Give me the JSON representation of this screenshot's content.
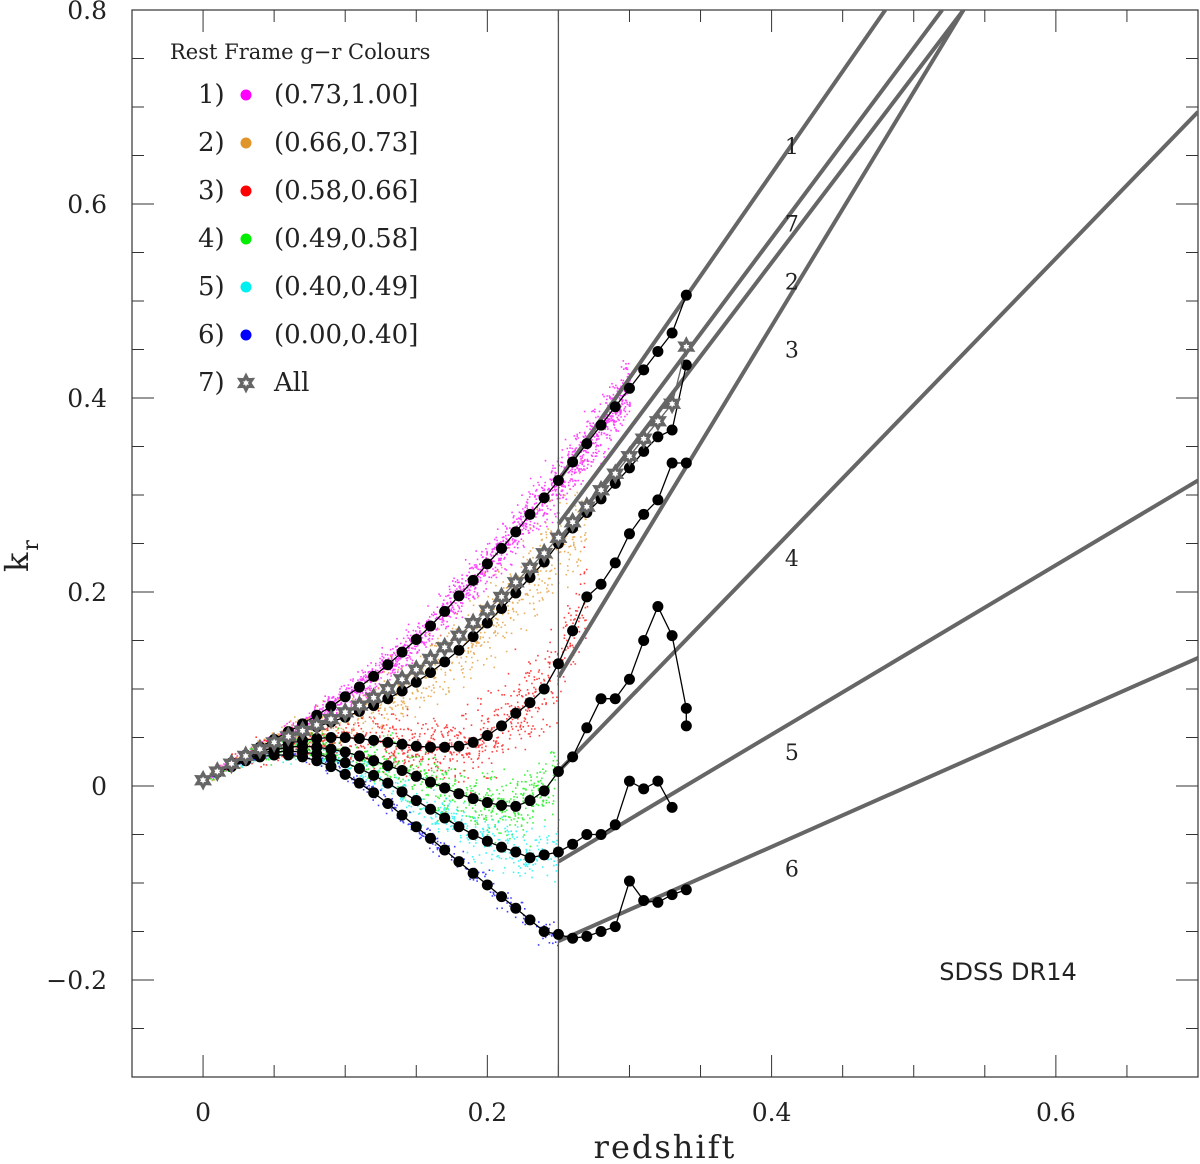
{
  "chart_data": {
    "type": "scatter",
    "title": "",
    "xlabel": "redshift",
    "ylabel": "k",
    "ylabel_subscript": "r",
    "xlim": [
      -0.05,
      0.7
    ],
    "ylim": [
      -0.3,
      0.8
    ],
    "x_ticks": [
      0,
      0.2,
      0.4,
      0.6
    ],
    "x_tick_labels": [
      "0",
      "0.2",
      "0.4",
      "0.6"
    ],
    "y_ticks": [
      -0.2,
      0,
      0.2,
      0.4,
      0.6,
      0.8
    ],
    "y_tick_labels": [
      "−0.2",
      "0",
      "0.2",
      "0.4",
      "0.6",
      "0.8"
    ],
    "vertical_line_x": 0.25,
    "annotation": "SDSS DR14",
    "legend": {
      "title": "Rest Frame g−r Colours",
      "position": "top-left",
      "entries": [
        {
          "label": "1)",
          "range": "(0.73,1.00]",
          "color": "#ff00ff"
        },
        {
          "label": "2)",
          "range": "(0.66,0.73]",
          "color": "#e0952a"
        },
        {
          "label": "3)",
          "range": "(0.58,0.66]",
          "color": "#ff0000"
        },
        {
          "label": "4)",
          "range": "(0.49,0.58]",
          "color": "#00ee00"
        },
        {
          "label": "5)",
          "range": "(0.40,0.49]",
          "color": "#00f0f0"
        },
        {
          "label": "6)",
          "range": "(0.00,0.40]",
          "color": "#0000ff"
        },
        {
          "label": "7)",
          "range": "All",
          "color": "#666666",
          "marker": "star"
        }
      ]
    },
    "series": [
      {
        "name": "1",
        "color": "#ff00ff",
        "x": [
          0.0,
          0.01,
          0.02,
          0.03,
          0.04,
          0.05,
          0.06,
          0.07,
          0.08,
          0.09,
          0.1,
          0.11,
          0.12,
          0.13,
          0.14,
          0.15,
          0.16,
          0.17,
          0.18,
          0.19,
          0.2,
          0.21,
          0.22,
          0.23,
          0.24,
          0.25,
          0.26,
          0.27,
          0.28,
          0.29,
          0.3,
          0.31,
          0.32,
          0.33,
          0.34
        ],
        "y": [
          0.006,
          0.015,
          0.024,
          0.032,
          0.04,
          0.048,
          0.056,
          0.064,
          0.073,
          0.082,
          0.092,
          0.102,
          0.113,
          0.125,
          0.138,
          0.151,
          0.165,
          0.18,
          0.196,
          0.212,
          0.229,
          0.245,
          0.262,
          0.28,
          0.297,
          0.315,
          0.334,
          0.353,
          0.372,
          0.391,
          0.41,
          0.429,
          0.448,
          0.467,
          0.506
        ]
      },
      {
        "name": "2",
        "color": "#e0952a",
        "x": [
          0.0,
          0.01,
          0.02,
          0.03,
          0.04,
          0.05,
          0.06,
          0.07,
          0.08,
          0.09,
          0.1,
          0.11,
          0.12,
          0.13,
          0.14,
          0.15,
          0.16,
          0.17,
          0.18,
          0.19,
          0.2,
          0.21,
          0.22,
          0.23,
          0.24,
          0.25,
          0.26,
          0.27,
          0.28,
          0.29,
          0.3,
          0.31,
          0.32,
          0.33,
          0.34
        ],
        "y": [
          0.006,
          0.015,
          0.023,
          0.031,
          0.038,
          0.045,
          0.051,
          0.056,
          0.061,
          0.066,
          0.071,
          0.077,
          0.083,
          0.09,
          0.098,
          0.107,
          0.117,
          0.128,
          0.14,
          0.154,
          0.168,
          0.183,
          0.199,
          0.215,
          0.231,
          0.25,
          0.266,
          0.282,
          0.296,
          0.312,
          0.328,
          0.345,
          0.36,
          0.367,
          0.434
        ]
      },
      {
        "name": "3",
        "color": "#ff0000",
        "x": [
          0.0,
          0.01,
          0.02,
          0.03,
          0.04,
          0.05,
          0.06,
          0.07,
          0.08,
          0.09,
          0.1,
          0.11,
          0.12,
          0.13,
          0.14,
          0.15,
          0.16,
          0.17,
          0.18,
          0.19,
          0.2,
          0.21,
          0.22,
          0.23,
          0.24,
          0.25,
          0.26,
          0.27,
          0.28,
          0.29,
          0.3,
          0.31,
          0.32,
          0.33,
          0.34
        ],
        "y": [
          0.006,
          0.014,
          0.022,
          0.029,
          0.035,
          0.04,
          0.044,
          0.047,
          0.049,
          0.05,
          0.05,
          0.049,
          0.047,
          0.045,
          0.043,
          0.041,
          0.04,
          0.04,
          0.041,
          0.045,
          0.052,
          0.062,
          0.075,
          0.086,
          0.1,
          0.126,
          0.16,
          0.195,
          0.208,
          0.23,
          0.26,
          0.28,
          0.295,
          0.333,
          0.333
        ]
      },
      {
        "name": "4",
        "color": "#00ee00",
        "x": [
          0.0,
          0.01,
          0.02,
          0.03,
          0.04,
          0.05,
          0.06,
          0.07,
          0.08,
          0.09,
          0.1,
          0.11,
          0.12,
          0.13,
          0.14,
          0.15,
          0.16,
          0.17,
          0.18,
          0.19,
          0.2,
          0.21,
          0.22,
          0.23,
          0.24,
          0.25,
          0.26,
          0.27,
          0.28,
          0.29,
          0.3,
          0.31,
          0.32,
          0.33,
          0.34,
          0.34
        ],
        "y": [
          0.006,
          0.014,
          0.021,
          0.028,
          0.033,
          0.037,
          0.04,
          0.041,
          0.04,
          0.038,
          0.035,
          0.031,
          0.026,
          0.021,
          0.016,
          0.01,
          0.004,
          -0.002,
          -0.008,
          -0.013,
          -0.017,
          -0.02,
          -0.021,
          -0.015,
          -0.005,
          0.015,
          0.03,
          0.06,
          0.09,
          0.09,
          0.11,
          0.15,
          0.185,
          0.155,
          0.08,
          0.062
        ]
      },
      {
        "name": "5",
        "color": "#00f0f0",
        "x": [
          0.0,
          0.01,
          0.02,
          0.03,
          0.04,
          0.05,
          0.06,
          0.07,
          0.08,
          0.09,
          0.1,
          0.11,
          0.12,
          0.13,
          0.14,
          0.15,
          0.16,
          0.17,
          0.18,
          0.19,
          0.2,
          0.21,
          0.22,
          0.23,
          0.24,
          0.25,
          0.26,
          0.27,
          0.28,
          0.29,
          0.3,
          0.31,
          0.32,
          0.33
        ],
        "y": [
          0.006,
          0.014,
          0.021,
          0.027,
          0.032,
          0.035,
          0.036,
          0.035,
          0.033,
          0.029,
          0.024,
          0.018,
          0.011,
          0.003,
          -0.006,
          -0.015,
          -0.024,
          -0.033,
          -0.042,
          -0.05,
          -0.057,
          -0.063,
          -0.068,
          -0.074,
          -0.071,
          -0.068,
          -0.06,
          -0.05,
          -0.05,
          -0.04,
          0.005,
          -0.003,
          0.005,
          -0.022
        ]
      },
      {
        "name": "6",
        "color": "#0000ff",
        "x": [
          0.0,
          0.01,
          0.02,
          0.03,
          0.04,
          0.05,
          0.06,
          0.07,
          0.08,
          0.09,
          0.1,
          0.11,
          0.12,
          0.13,
          0.14,
          0.15,
          0.16,
          0.17,
          0.18,
          0.19,
          0.2,
          0.21,
          0.22,
          0.23,
          0.24,
          0.25,
          0.26,
          0.27,
          0.28,
          0.29,
          0.3,
          0.31,
          0.32,
          0.33,
          0.34
        ],
        "y": [
          0.006,
          0.014,
          0.02,
          0.026,
          0.03,
          0.032,
          0.032,
          0.03,
          0.026,
          0.02,
          0.012,
          0.003,
          -0.007,
          -0.018,
          -0.03,
          -0.042,
          -0.054,
          -0.066,
          -0.078,
          -0.09,
          -0.102,
          -0.114,
          -0.126,
          -0.138,
          -0.15,
          -0.153,
          -0.157,
          -0.155,
          -0.15,
          -0.145,
          -0.098,
          -0.118,
          -0.12,
          -0.112,
          -0.107
        ]
      },
      {
        "name": "7",
        "color": "#666666",
        "marker": "star",
        "x": [
          0.0,
          0.01,
          0.02,
          0.03,
          0.04,
          0.05,
          0.06,
          0.07,
          0.08,
          0.09,
          0.1,
          0.11,
          0.12,
          0.13,
          0.14,
          0.15,
          0.16,
          0.17,
          0.18,
          0.19,
          0.2,
          0.21,
          0.22,
          0.23,
          0.24,
          0.25,
          0.26,
          0.27,
          0.28,
          0.29,
          0.3,
          0.31,
          0.32,
          0.33,
          0.34
        ],
        "y": [
          0.006,
          0.015,
          0.023,
          0.031,
          0.038,
          0.045,
          0.051,
          0.057,
          0.063,
          0.069,
          0.076,
          0.083,
          0.091,
          0.1,
          0.11,
          0.12,
          0.131,
          0.143,
          0.155,
          0.168,
          0.181,
          0.195,
          0.21,
          0.225,
          0.24,
          0.256,
          0.272,
          0.288,
          0.305,
          0.322,
          0.34,
          0.358,
          0.376,
          0.394,
          0.453
        ]
      }
    ],
    "fit_lines": [
      {
        "label": "1",
        "x0": 0.25,
        "y0": 0.315,
        "x1": 0.48,
        "y1": 0.8,
        "label_x": 0.41,
        "label_y": 0.66
      },
      {
        "label": "7",
        "x0": 0.25,
        "y0": 0.27,
        "x1": 0.52,
        "y1": 0.8,
        "label_x": 0.41,
        "label_y": 0.58
      },
      {
        "label": "2",
        "x0": 0.25,
        "y0": 0.25,
        "x1": 0.535,
        "y1": 0.8,
        "label_x": 0.41,
        "label_y": 0.52
      },
      {
        "label": "3",
        "x0": 0.25,
        "y0": 0.112,
        "x1": 0.535,
        "y1": 0.8,
        "label_x": 0.41,
        "label_y": 0.45
      },
      {
        "label": "4",
        "x0": 0.25,
        "y0": 0.015,
        "x1": 0.7,
        "y1": 0.695,
        "label_x": 0.41,
        "label_y": 0.235
      },
      {
        "label": "5",
        "x0": 0.25,
        "y0": -0.078,
        "x1": 0.7,
        "y1": 0.315,
        "label_x": 0.41,
        "label_y": 0.035
      },
      {
        "label": "6",
        "x0": 0.25,
        "y0": -0.16,
        "x1": 0.7,
        "y1": 0.132,
        "label_x": 0.41,
        "label_y": -0.085
      }
    ]
  }
}
